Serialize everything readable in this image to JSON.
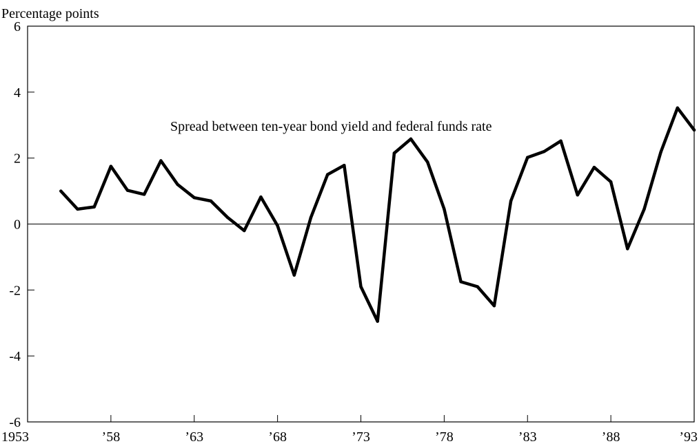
{
  "chart_data": {
    "type": "line",
    "title": "",
    "ylabel": "Percentage points",
    "xlabel": "",
    "xlim": [
      1953,
      1993
    ],
    "ylim": [
      -6,
      6
    ],
    "x_ticks": [
      1953,
      1958,
      1963,
      1968,
      1973,
      1978,
      1983,
      1988,
      1993
    ],
    "x_tick_labels": [
      "1953",
      "’58",
      "’63",
      "’68",
      "’73",
      "’78",
      "’83",
      "’88",
      "’93"
    ],
    "y_ticks": [
      6,
      4,
      2,
      0,
      -2,
      -4,
      -6
    ],
    "y_tick_labels": [
      "6",
      "4",
      "2",
      "0",
      "-2",
      "-4",
      "-6"
    ],
    "zero_line": true,
    "grid": false,
    "annotation": "Spread between ten-year bond yield and federal funds rate",
    "series": [
      {
        "name": "Spread between ten-year bond yield and federal funds rate",
        "x": [
          1955,
          1956,
          1957,
          1958,
          1959,
          1960,
          1961,
          1962,
          1963,
          1964,
          1965,
          1966,
          1967,
          1968,
          1969,
          1970,
          1971,
          1972,
          1973,
          1974,
          1975,
          1976,
          1977,
          1978,
          1979,
          1980,
          1981,
          1982,
          1983,
          1984,
          1985,
          1986,
          1987,
          1988,
          1989,
          1990,
          1991,
          1992,
          1993
        ],
        "values": [
          1.0,
          0.45,
          0.52,
          1.75,
          1.02,
          0.9,
          1.92,
          1.2,
          0.8,
          0.7,
          0.2,
          -0.2,
          0.82,
          -0.05,
          -1.55,
          0.2,
          1.5,
          1.78,
          -1.9,
          -2.95,
          2.15,
          2.58,
          1.88,
          0.45,
          -1.75,
          -1.9,
          -2.48,
          0.7,
          2.02,
          2.2,
          2.52,
          0.88,
          1.72,
          1.28,
          -0.75,
          0.45,
          2.18,
          3.52,
          2.85
        ]
      }
    ]
  }
}
